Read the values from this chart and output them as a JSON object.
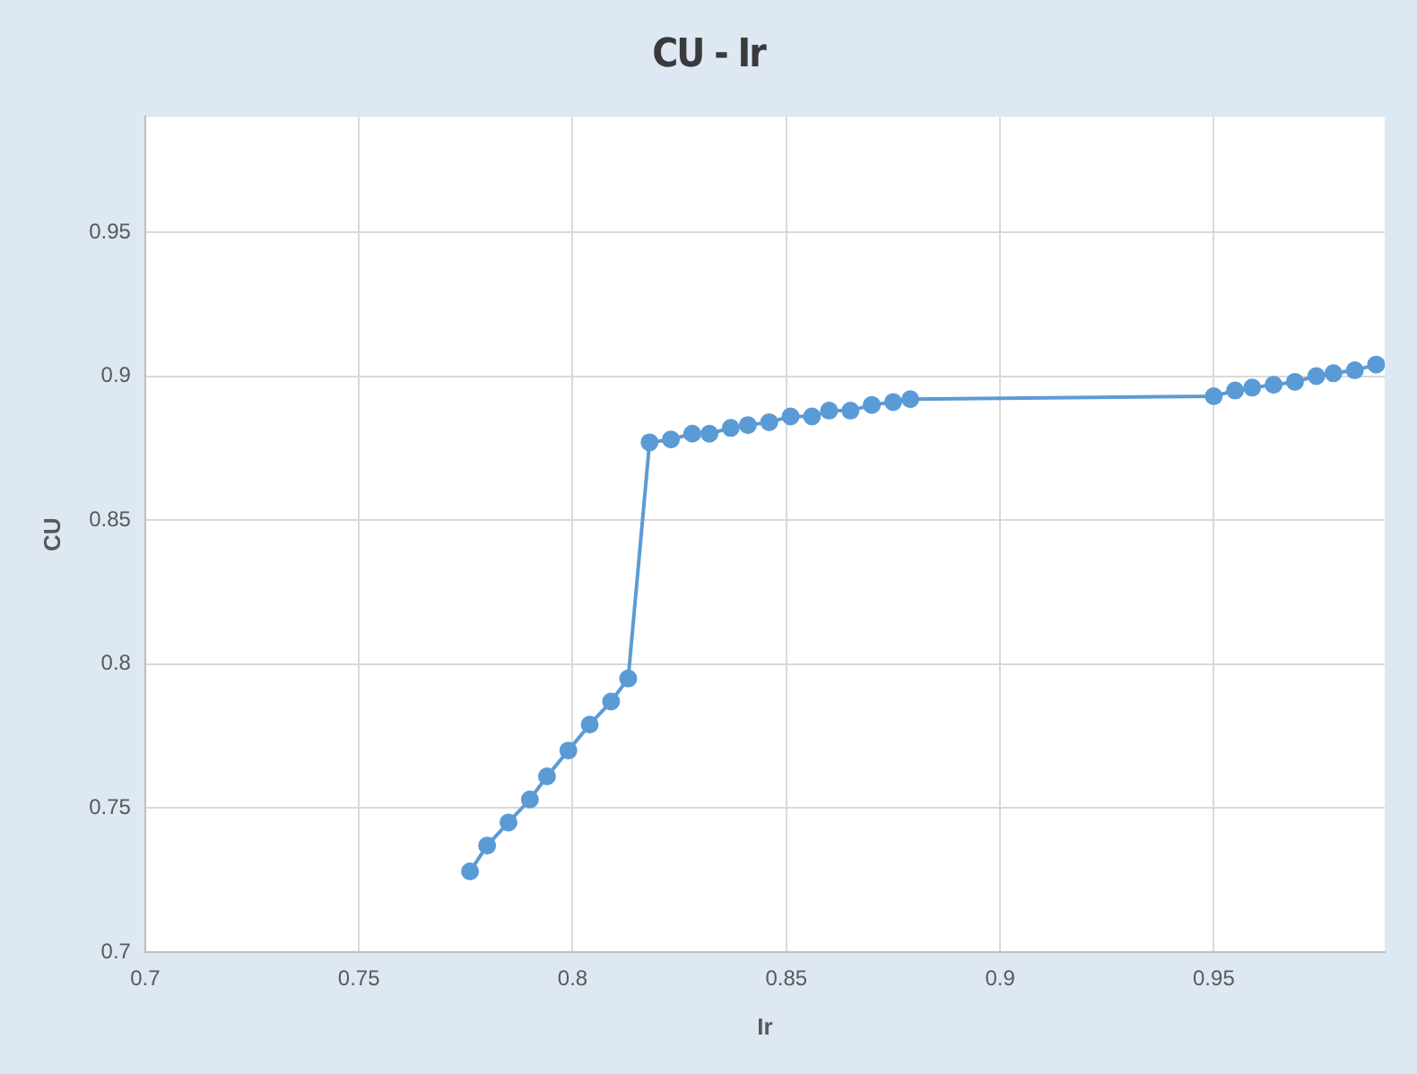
{
  "chart_data": {
    "type": "line",
    "title": "CU - Ir",
    "xlabel": "Ir",
    "ylabel": "CU",
    "x": [
      0.776,
      0.78,
      0.785,
      0.79,
      0.794,
      0.799,
      0.804,
      0.809,
      0.813,
      0.818,
      0.823,
      0.828,
      0.832,
      0.837,
      0.841,
      0.846,
      0.851,
      0.856,
      0.86,
      0.865,
      0.87,
      0.875,
      0.879,
      0.95,
      0.955,
      0.959,
      0.964,
      0.969,
      0.974,
      0.978,
      0.983,
      0.988
    ],
    "series": [
      {
        "color": "#5b9bd5",
        "values": [
          0.728,
          0.737,
          0.745,
          0.753,
          0.761,
          0.77,
          0.779,
          0.787,
          0.795,
          0.877,
          0.878,
          0.88,
          0.88,
          0.882,
          0.883,
          0.884,
          0.886,
          0.886,
          0.888,
          0.888,
          0.89,
          0.891,
          0.892,
          0.893,
          0.895,
          0.896,
          0.897,
          0.898,
          0.9,
          0.901,
          0.902,
          0.904
        ]
      }
    ],
    "xlim": [
      0.7,
      0.99
    ],
    "xticks": [
      0.7,
      0.75,
      0.8,
      0.85,
      0.9,
      0.95
    ],
    "ylim": [
      0.7,
      0.99
    ],
    "yticks": [
      0.7,
      0.75,
      0.8,
      0.85,
      0.9,
      0.95
    ],
    "grid": true,
    "legend": false,
    "marker": "circle",
    "line_style": "solid"
  }
}
